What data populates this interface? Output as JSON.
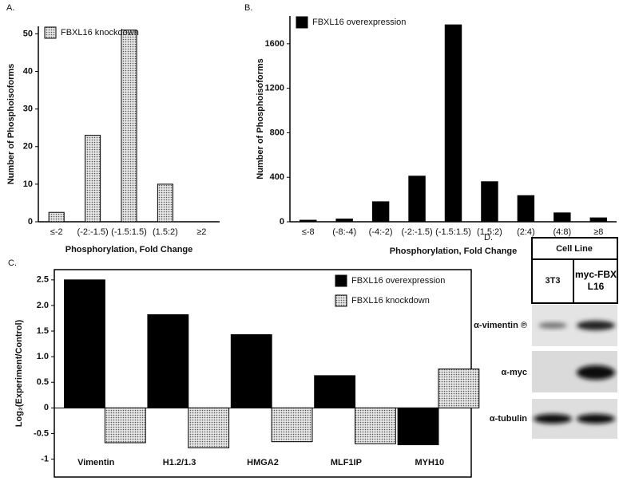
{
  "chart_data": [
    {
      "type": "bar",
      "panel_label": "A.",
      "categories": [
        "≤-2",
        "(-2:-1.5)",
        "(-1.5:1.5)",
        "(1.5:2)",
        "≥2"
      ],
      "series": [
        {
          "name": "FBXL16 knockdown",
          "color": "#ffffff",
          "pattern": "dots",
          "values": [
            2.5,
            23,
            51,
            10,
            0
          ]
        }
      ],
      "ylim": [
        0,
        52
      ],
      "yticks": [
        0,
        10,
        20,
        30,
        40,
        50
      ],
      "ylabel": "Number of Phosphoisoforms",
      "xlabel": "Phosphorylation, Fold Change",
      "legend": "upper left"
    },
    {
      "type": "bar",
      "panel_label": "B.",
      "categories": [
        "≤-8",
        "(-8:-4)",
        "(-4:-2)",
        "(-2:-1.5)",
        "(-1.5:1.5)",
        "(1.5:2)",
        "(2:4)",
        "(4:8)",
        "≥8"
      ],
      "series": [
        {
          "name": "FBXL16 overexpression",
          "color": "#000000",
          "values": [
            14,
            25,
            180,
            410,
            1770,
            360,
            235,
            80,
            35
          ]
        }
      ],
      "ylim": [
        0,
        1850
      ],
      "yticks": [
        0,
        400,
        800,
        1200,
        1600
      ],
      "ylabel": "Number of Phosphoisoforms",
      "xlabel": "Phosphorylation, Fold Change",
      "legend": "upper left"
    },
    {
      "type": "bar",
      "panel_label": "C.",
      "categories": [
        "Vimentin",
        "H1.2/1.3",
        "HMGA2",
        "MLF1IP",
        "MYH10"
      ],
      "series": [
        {
          "name": "FBXL16 overexpression",
          "color": "#000000",
          "values": [
            2.5,
            1.82,
            1.43,
            0.63,
            -0.72
          ]
        },
        {
          "name": "FBXL16 knockdown",
          "color": "#ffffff",
          "pattern": "dots",
          "values": [
            -0.68,
            -0.78,
            -0.66,
            -0.7,
            0.76
          ]
        }
      ],
      "ylim": [
        -1.35,
        2.7
      ],
      "yticks": [
        -1.0,
        -0.5,
        0,
        0.5,
        {
          "value": 1,
          "label": "1.0"
        },
        1.5,
        {
          "value": 2,
          "label": "2.0"
        },
        2.5
      ],
      "ylabel": "Log₂(Experiment/Control)",
      "legend": "upper right"
    }
  ],
  "blot": {
    "panel_label": "D.",
    "header": "Cell Line",
    "columns": [
      "3T3",
      "myc-FBXL16"
    ],
    "rows": [
      "α-vimentin ℗",
      "α-myc",
      "α-tubulin"
    ]
  }
}
